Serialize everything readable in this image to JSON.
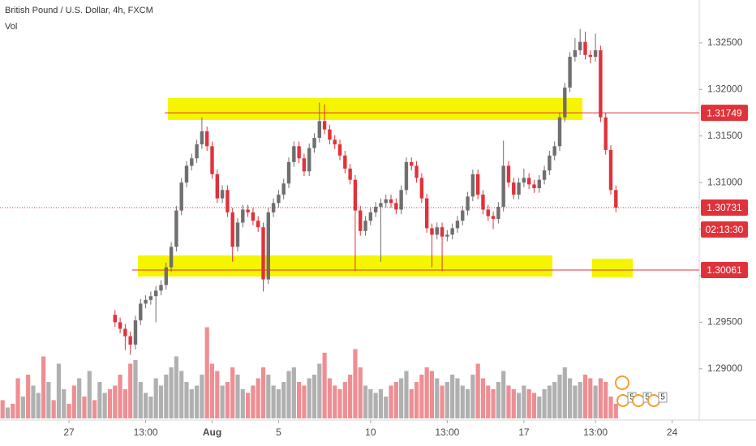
{
  "chart_data": {
    "type": "candlestick",
    "title": "British Pound / U.S. Dollar, 4h, FXCM",
    "volume_label": "Vol",
    "xlim": [
      -0.5,
      136.3
    ],
    "ylim": [
      1.2845,
      1.3296
    ],
    "volume_lim": [
      0,
      100
    ],
    "xticks": [
      {
        "value": 13,
        "label": "27"
      },
      {
        "value": 28,
        "label": "13:00"
      },
      {
        "value": 41,
        "label": "Aug"
      },
      {
        "value": 54,
        "label": "5"
      },
      {
        "value": 72,
        "label": "10"
      },
      {
        "value": 87,
        "label": "13:00"
      },
      {
        "value": 102,
        "label": "17"
      },
      {
        "value": 116,
        "label": "13:00"
      },
      {
        "value": 131,
        "label": "24"
      }
    ],
    "yticks": [
      {
        "value": 1.29,
        "label": "1.29000"
      },
      {
        "value": 1.295,
        "label": "1.29500"
      },
      {
        "value": 1.3,
        "label": "1.30000"
      },
      {
        "value": 1.305,
        "label": "1.30500"
      },
      {
        "value": 1.31,
        "label": "1.31000"
      },
      {
        "value": 1.315,
        "label": "1.31500"
      },
      {
        "value": 1.32,
        "label": "1.32000"
      },
      {
        "value": 1.325,
        "label": "1.32500"
      }
    ],
    "up_color": "#6f6f6f",
    "down_color": "#e0323a",
    "price_lines": [
      1.31749,
      1.30061
    ],
    "current_price": 1.30731,
    "countdown": "02:13:30",
    "event_badges": [
      "5",
      "5",
      "5"
    ],
    "open": [
      null,
      null,
      null,
      null,
      null,
      null,
      null,
      null,
      null,
      null,
      null,
      null,
      null,
      null,
      null,
      null,
      null,
      null,
      null,
      null,
      null,
      null,
      1.2958,
      1.295,
      1.2943,
      1.2935,
      1.2926,
      1.2952,
      1.297,
      1.2974,
      1.2978,
      1.2984,
      1.299,
      1.3009,
      1.3031,
      1.307,
      1.31,
      1.3118,
      1.3126,
      1.3141,
      1.3155,
      1.3139,
      1.3109,
      1.3083,
      1.3092,
      1.3068,
      1.3031,
      1.3057,
      1.3071,
      1.3068,
      1.3059,
      1.3052,
      1.2996,
      1.3068,
      1.3078,
      1.3087,
      1.3099,
      1.3122,
      1.3139,
      1.3126,
      1.3112,
      1.3137,
      1.3148,
      1.3166,
      1.3157,
      1.3146,
      1.3141,
      1.3129,
      1.3115,
      1.3103,
      1.307,
      1.3048,
      1.3059,
      1.3068,
      1.3074,
      1.3078,
      1.3082,
      1.3078,
      1.3071,
      1.3092,
      1.3122,
      1.3118,
      1.3105,
      1.3083,
      1.3051,
      1.3044,
      1.3052,
      1.3042,
      1.3044,
      1.3051,
      1.3059,
      1.307,
      1.3085,
      1.3109,
      1.3087,
      1.3071,
      1.3064,
      1.3061,
      1.3074,
      1.3118,
      1.31,
      1.3087,
      1.31,
      1.3105,
      1.3098,
      1.3094,
      1.3103,
      1.3113,
      1.3129,
      1.3139,
      1.317,
      1.3202,
      1.3235,
      1.3242,
      1.3251,
      1.3237,
      1.3235,
      1.3242,
      1.317,
      1.3135,
      1.3092
    ],
    "high": [
      null,
      null,
      null,
      null,
      null,
      null,
      null,
      null,
      null,
      null,
      null,
      null,
      null,
      null,
      null,
      null,
      null,
      null,
      null,
      null,
      null,
      null,
      1.2963,
      1.2955,
      1.2948,
      1.294,
      1.2957,
      1.2975,
      1.2979,
      1.2983,
      1.2989,
      1.2995,
      1.3014,
      1.3036,
      1.3075,
      1.3105,
      1.3123,
      1.3131,
      1.3146,
      1.317,
      1.316,
      1.3144,
      1.3114,
      1.3097,
      1.3097,
      1.3073,
      1.3062,
      1.3076,
      1.3076,
      1.3073,
      1.3064,
      1.3057,
      1.3073,
      1.3083,
      1.3092,
      1.3104,
      1.3127,
      1.3144,
      1.3144,
      1.3131,
      1.3142,
      1.3153,
      1.3186,
      1.3184,
      1.3162,
      1.3151,
      1.3146,
      1.3134,
      1.312,
      1.3108,
      1.3075,
      1.3064,
      1.3073,
      1.3079,
      1.3083,
      1.3087,
      1.3087,
      1.3083,
      1.3097,
      1.3127,
      1.3127,
      1.3123,
      1.311,
      1.3088,
      1.3056,
      1.3057,
      1.3057,
      1.3049,
      1.3056,
      1.3064,
      1.3075,
      1.309,
      1.3114,
      1.3114,
      1.3092,
      1.3076,
      1.3069,
      1.3079,
      1.3145,
      1.3123,
      1.3105,
      1.3105,
      1.3115,
      1.311,
      1.3103,
      1.3108,
      1.3118,
      1.3134,
      1.3144,
      1.3175,
      1.3207,
      1.324,
      1.3255,
      1.3265,
      1.3262,
      1.3242,
      1.326,
      1.3247,
      1.3175,
      1.314,
      1.3097
    ],
    "low": [
      null,
      null,
      null,
      null,
      null,
      null,
      null,
      null,
      null,
      null,
      null,
      null,
      null,
      null,
      null,
      null,
      null,
      null,
      null,
      null,
      null,
      null,
      1.2945,
      1.2938,
      1.292,
      1.2915,
      1.2921,
      1.2947,
      1.2965,
      1.2969,
      1.295,
      1.2979,
      1.2985,
      1.3004,
      1.3026,
      1.3065,
      1.3095,
      1.3113,
      1.3121,
      1.3136,
      1.3134,
      1.3104,
      1.3078,
      1.3078,
      1.3063,
      1.3015,
      1.3026,
      1.3052,
      1.3063,
      1.3054,
      1.3047,
      1.2983,
      1.2991,
      1.3063,
      1.3073,
      1.3082,
      1.3094,
      1.3117,
      1.3121,
      1.3107,
      1.3107,
      1.3132,
      1.3143,
      1.3152,
      1.3141,
      1.3136,
      1.3124,
      1.311,
      1.3098,
      1.3005,
      1.3043,
      1.3043,
      1.3054,
      1.3063,
      1.3015,
      1.3073,
      1.3073,
      1.3066,
      1.3066,
      1.3087,
      1.3113,
      1.31,
      1.3078,
      1.3046,
      1.3009,
      1.3039,
      1.3005,
      1.3037,
      1.3039,
      1.3046,
      1.3054,
      1.3065,
      1.308,
      1.3082,
      1.3066,
      1.3059,
      1.305,
      1.3056,
      1.3069,
      1.3095,
      1.3082,
      1.3082,
      1.3095,
      1.3093,
      1.3089,
      1.3089,
      1.3098,
      1.3108,
      1.3124,
      1.3134,
      1.3165,
      1.3197,
      1.323,
      1.3237,
      1.3232,
      1.3228,
      1.323,
      1.3165,
      1.313,
      1.3087,
      1.3068
    ],
    "close": [
      null,
      null,
      null,
      null,
      null,
      null,
      null,
      null,
      null,
      null,
      null,
      null,
      null,
      null,
      null,
      null,
      null,
      null,
      null,
      null,
      null,
      null,
      1.295,
      1.2943,
      1.2935,
      1.2926,
      1.2952,
      1.297,
      1.2974,
      1.2978,
      1.2984,
      1.299,
      1.3009,
      1.3031,
      1.307,
      1.31,
      1.3118,
      1.3126,
      1.3141,
      1.3155,
      1.3139,
      1.3109,
      1.3083,
      1.3092,
      1.3068,
      1.3031,
      1.3057,
      1.3071,
      1.3068,
      1.3059,
      1.3052,
      1.2996,
      1.3068,
      1.3078,
      1.3087,
      1.3099,
      1.3122,
      1.3139,
      1.3126,
      1.3112,
      1.3137,
      1.3148,
      1.3166,
      1.3157,
      1.3146,
      1.3141,
      1.3129,
      1.3115,
      1.3103,
      1.307,
      1.3048,
      1.3059,
      1.3068,
      1.3074,
      1.3078,
      1.3082,
      1.3078,
      1.3071,
      1.3092,
      1.3122,
      1.3118,
      1.3105,
      1.3083,
      1.3051,
      1.3044,
      1.3052,
      1.3042,
      1.3044,
      1.3051,
      1.3059,
      1.307,
      1.3085,
      1.3109,
      1.3087,
      1.3071,
      1.3064,
      1.3061,
      1.3074,
      1.3118,
      1.31,
      1.3087,
      1.31,
      1.3105,
      1.3098,
      1.3094,
      1.3103,
      1.3113,
      1.3129,
      1.3139,
      1.317,
      1.3202,
      1.3235,
      1.3242,
      1.3251,
      1.3237,
      1.3235,
      1.3242,
      1.317,
      1.3135,
      1.3092,
      1.3073
    ],
    "volume": [
      25,
      15,
      20,
      55,
      30,
      60,
      45,
      35,
      85,
      50,
      25,
      75,
      40,
      20,
      45,
      55,
      30,
      65,
      25,
      50,
      35,
      40,
      45,
      60,
      40,
      75,
      80,
      50,
      35,
      30,
      55,
      45,
      60,
      70,
      85,
      65,
      50,
      40,
      45,
      60,
      125,
      75,
      65,
      45,
      50,
      70,
      60,
      40,
      35,
      45,
      55,
      70,
      60,
      45,
      40,
      50,
      65,
      70,
      50,
      45,
      55,
      60,
      75,
      90,
      55,
      45,
      40,
      50,
      60,
      95,
      70,
      45,
      40,
      35,
      40,
      30,
      45,
      50,
      55,
      65,
      40,
      50,
      60,
      70,
      65,
      55,
      45,
      50,
      60,
      55,
      45,
      40,
      60,
      75,
      55,
      45,
      40,
      50,
      65,
      45,
      40,
      35,
      45,
      40,
      35,
      30,
      40,
      45,
      50,
      60,
      70,
      55,
      45,
      50,
      60,
      55,
      45,
      55,
      50,
      30,
      20
    ],
    "volume_up": [
      0,
      1,
      0,
      0,
      1,
      0,
      1,
      1,
      0,
      1,
      0,
      1,
      1,
      0,
      0,
      1,
      0,
      1,
      0,
      1,
      1,
      0,
      0,
      0,
      0,
      0,
      1,
      1,
      1,
      1,
      1,
      1,
      1,
      1,
      1,
      1,
      1,
      1,
      1,
      1,
      0,
      0,
      0,
      1,
      0,
      0,
      1,
      1,
      0,
      0,
      0,
      0,
      1,
      1,
      1,
      1,
      1,
      1,
      0,
      0,
      1,
      1,
      1,
      0,
      0,
      0,
      0,
      0,
      0,
      0,
      0,
      1,
      1,
      1,
      1,
      1,
      0,
      0,
      1,
      1,
      0,
      0,
      0,
      0,
      0,
      1,
      0,
      1,
      1,
      1,
      1,
      1,
      1,
      0,
      0,
      0,
      0,
      1,
      1,
      0,
      0,
      1,
      1,
      0,
      0,
      1,
      1,
      1,
      1,
      1,
      1,
      1,
      1,
      1,
      0,
      0,
      1,
      0,
      0,
      0,
      0
    ]
  }
}
